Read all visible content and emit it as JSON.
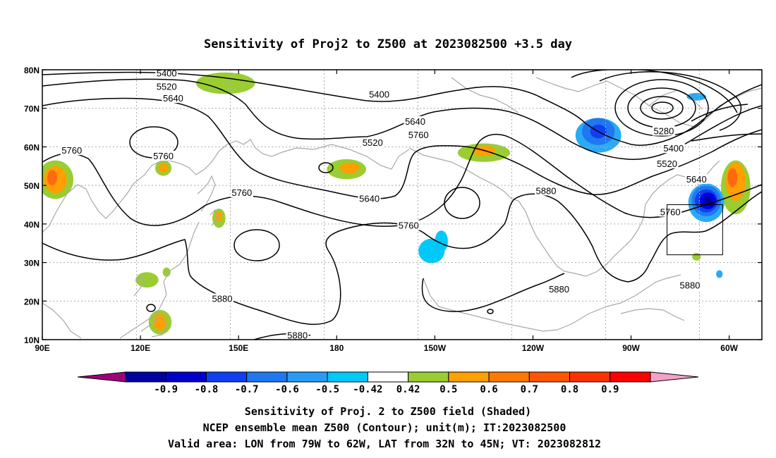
{
  "title": "Sensitivity of Proj2 to Z500 at 2023082500 +3.5 day",
  "map": {
    "lon_range": [
      90,
      310
    ],
    "lat_range": [
      10,
      80
    ],
    "lat_ticks": [
      {
        "value": 80,
        "label": "80N"
      },
      {
        "value": 70,
        "label": "70N"
      },
      {
        "value": 60,
        "label": "60N"
      },
      {
        "value": 50,
        "label": "50N"
      },
      {
        "value": 40,
        "label": "40N"
      },
      {
        "value": 30,
        "label": "30N"
      },
      {
        "value": 20,
        "label": "20N"
      },
      {
        "value": 10,
        "label": "10N"
      }
    ],
    "lon_ticks": [
      {
        "value": 90,
        "label": "90E"
      },
      {
        "value": 120,
        "label": "120E"
      },
      {
        "value": 150,
        "label": "150E"
      },
      {
        "value": 180,
        "label": "180"
      },
      {
        "value": 210,
        "label": "150W"
      },
      {
        "value": 240,
        "label": "120W"
      },
      {
        "value": 270,
        "label": "90W"
      },
      {
        "value": 300,
        "label": "60W"
      }
    ],
    "valid_box": {
      "lon": [
        281,
        298
      ],
      "lat": [
        32,
        45
      ]
    },
    "contour_labels": [
      {
        "text": "5400",
        "lon": 128,
        "lat": 79.0
      },
      {
        "text": "5520",
        "lon": 128,
        "lat": 75.5
      },
      {
        "text": "5640",
        "lon": 130,
        "lat": 72.5
      },
      {
        "text": "5760",
        "lon": 99,
        "lat": 59.0
      },
      {
        "text": "5760",
        "lon": 127,
        "lat": 57.5
      },
      {
        "text": "5760",
        "lon": 151,
        "lat": 48.0
      },
      {
        "text": "5880",
        "lon": 145,
        "lat": 20.5
      },
      {
        "text": "5880",
        "lon": 168,
        "lat": 11.0
      },
      {
        "text": "5400",
        "lon": 193,
        "lat": 73.5
      },
      {
        "text": "5520",
        "lon": 191,
        "lat": 61.0
      },
      {
        "text": "5640",
        "lon": 204,
        "lat": 66.5
      },
      {
        "text": "5760",
        "lon": 205,
        "lat": 63.0
      },
      {
        "text": "5640",
        "lon": 190,
        "lat": 46.5
      },
      {
        "text": "5760",
        "lon": 202,
        "lat": 39.5
      },
      {
        "text": "5880",
        "lon": 244,
        "lat": 48.5
      },
      {
        "text": "5880",
        "lon": 248,
        "lat": 23.0
      },
      {
        "text": "5280",
        "lon": 280,
        "lat": 64.0
      },
      {
        "text": "5400",
        "lon": 283,
        "lat": 59.5
      },
      {
        "text": "5520",
        "lon": 281,
        "lat": 55.5
      },
      {
        "text": "5640",
        "lon": 290,
        "lat": 51.5
      },
      {
        "text": "5760",
        "lon": 282,
        "lat": 43.0
      },
      {
        "text": "5880",
        "lon": 288,
        "lat": 24.0
      }
    ],
    "sensitivity_patches": [
      {
        "lon": 94,
        "lat": 51.5,
        "rx": 5.5,
        "ry": 5,
        "value": 0.5
      },
      {
        "lon": 94,
        "lat": 51.5,
        "rx": 3.5,
        "ry": 3.5,
        "value": 0.6
      },
      {
        "lon": 93,
        "lat": 52,
        "rx": 1.5,
        "ry": 2,
        "value": 0.7
      },
      {
        "lon": 127,
        "lat": 54.5,
        "rx": 2.5,
        "ry": 2,
        "value": 0.5
      },
      {
        "lon": 127,
        "lat": 54.5,
        "rx": 1.5,
        "ry": 1.2,
        "value": 0.6
      },
      {
        "lon": 146,
        "lat": 76.5,
        "rx": 9,
        "ry": 2.8,
        "value": 0.5
      },
      {
        "lon": 144,
        "lat": 41.5,
        "rx": 2,
        "ry": 2.5,
        "value": 0.5
      },
      {
        "lon": 144,
        "lat": 42,
        "rx": 1,
        "ry": 1.3,
        "value": 0.6
      },
      {
        "lon": 183,
        "lat": 54.2,
        "rx": 6,
        "ry": 2.6,
        "value": 0.5
      },
      {
        "lon": 184,
        "lat": 54.5,
        "rx": 3,
        "ry": 1.4,
        "value": 0.6
      },
      {
        "lon": 225,
        "lat": 58.5,
        "rx": 8,
        "ry": 2.4,
        "value": 0.5
      },
      {
        "lon": 225,
        "lat": 59,
        "rx": 3.5,
        "ry": 1.4,
        "value": 0.6
      },
      {
        "lon": 126,
        "lat": 14.5,
        "rx": 3.5,
        "ry": 3.2,
        "value": 0.5
      },
      {
        "lon": 126,
        "lat": 14.5,
        "rx": 2,
        "ry": 2.2,
        "value": 0.6
      },
      {
        "lon": 122,
        "lat": 25.5,
        "rx": 3.5,
        "ry": 2,
        "value": 0.5
      },
      {
        "lon": 128,
        "lat": 27.5,
        "rx": 1.2,
        "ry": 1.2,
        "value": 0.5
      },
      {
        "lon": 302,
        "lat": 49.5,
        "rx": 4.5,
        "ry": 7,
        "value": 0.5
      },
      {
        "lon": 302,
        "lat": 51,
        "rx": 3,
        "ry": 5,
        "value": 0.6
      },
      {
        "lon": 301,
        "lat": 52,
        "rx": 1.5,
        "ry": 2.5,
        "value": 0.7
      },
      {
        "lon": 290,
        "lat": 31.5,
        "rx": 1.3,
        "ry": 1,
        "value": 0.5
      },
      {
        "lon": 209,
        "lat": 33,
        "rx": 4,
        "ry": 3.2,
        "value": -0.42
      },
      {
        "lon": 212,
        "lat": 35.5,
        "rx": 2,
        "ry": 2.8,
        "value": -0.42
      },
      {
        "lon": 260,
        "lat": 63,
        "rx": 7,
        "ry": 4.5,
        "value": -0.5
      },
      {
        "lon": 260,
        "lat": 64,
        "rx": 5,
        "ry": 3.5,
        "value": -0.6
      },
      {
        "lon": 260,
        "lat": 64,
        "rx": 2.5,
        "ry": 1.8,
        "value": -0.7
      },
      {
        "lon": 293,
        "lat": 45.5,
        "rx": 5.5,
        "ry": 5,
        "value": -0.5
      },
      {
        "lon": 293,
        "lat": 46,
        "rx": 4.5,
        "ry": 4,
        "value": -0.6
      },
      {
        "lon": 293,
        "lat": 46,
        "rx": 3.5,
        "ry": 3,
        "value": -0.7
      },
      {
        "lon": 293.5,
        "lat": 46,
        "rx": 2.5,
        "ry": 2.2,
        "value": -0.8
      },
      {
        "lon": 293.5,
        "lat": 46,
        "rx": 1.3,
        "ry": 1.2,
        "value": -0.9
      },
      {
        "lon": 290,
        "lat": 73,
        "rx": 3,
        "ry": 1,
        "value": -0.5
      },
      {
        "lon": 297,
        "lat": 27,
        "rx": 1,
        "ry": 1,
        "value": -0.5
      }
    ]
  },
  "colorbar": {
    "colors": [
      "#a0007c",
      "#0000a0",
      "#0000cc",
      "#0f3ff0",
      "#1f78f0",
      "#2a9bf5",
      "#00c8f8",
      "#ffffff",
      "#9acd32",
      "#ff9f00",
      "#ff7a00",
      "#ff5500",
      "#ff3000",
      "#ff0000",
      "#f4a0c8"
    ],
    "levels": [
      "-0.9",
      "-0.8",
      "-0.7",
      "-0.6",
      "-0.5",
      "-0.42",
      "0.42",
      "0.5",
      "0.6",
      "0.7",
      "0.8",
      "0.9"
    ]
  },
  "captions": {
    "line1": "Sensitivity of Proj. 2 to Z500 field (Shaded)",
    "line2": "NCEP ensemble mean Z500 (Contour); unit(m); IT:2023082500",
    "line3": "Valid area: LON from 79W to 62W, LAT from 32N to 45N; VT: 2023082812"
  }
}
